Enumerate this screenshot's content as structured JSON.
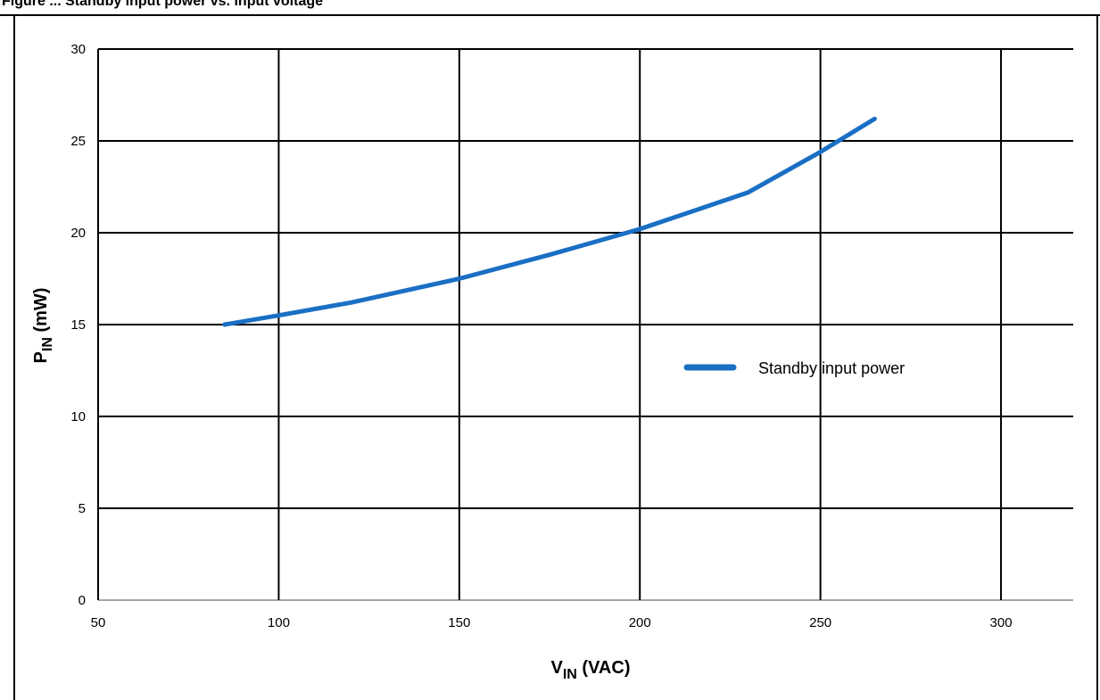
{
  "caption": "Figure ... Standby input power vs. input voltage",
  "chart_data": {
    "type": "line",
    "xlabel": {
      "main": "V",
      "sub": "IN",
      "rest": " (VAC)"
    },
    "ylabel": {
      "main": "P",
      "sub": "IN",
      "rest": " (mW)"
    },
    "xlim": [
      50,
      320
    ],
    "ylim": [
      0,
      30
    ],
    "xticks": [
      50,
      100,
      150,
      200,
      250,
      300
    ],
    "yticks": [
      0,
      5,
      10,
      15,
      20,
      25,
      30
    ],
    "grid": true,
    "legend_position": "right-middle",
    "series": [
      {
        "name": "Standby input power",
        "color": "#1a6fc4",
        "points": [
          [
            85,
            15.0
          ],
          [
            100,
            15.5
          ],
          [
            120,
            16.2
          ],
          [
            150,
            17.5
          ],
          [
            175,
            18.8
          ],
          [
            200,
            20.2
          ],
          [
            230,
            22.2
          ],
          [
            250,
            24.4
          ],
          [
            265,
            26.2
          ]
        ]
      }
    ]
  }
}
